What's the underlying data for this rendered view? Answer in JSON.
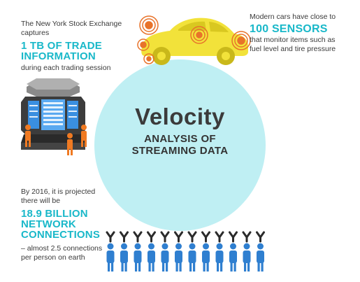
{
  "center": {
    "title": "Velocity",
    "subtitle_line1": "ANALYSIS OF",
    "subtitle_line2": "STREAMING DATA"
  },
  "nyse": {
    "line1": "The New York Stock Exchange",
    "line2": "captures",
    "highlight_line1": "1 TB OF TRADE",
    "highlight_line2": "INFORMATION",
    "line3": "during each trading session"
  },
  "cars": {
    "line1": "Modern cars have close to",
    "highlight": "100 SENSORS",
    "line2": "that monitor items such as",
    "line3": "fuel level and tire pressure"
  },
  "network": {
    "line1": "By 2016, it is projected",
    "line2": "there will be",
    "highlight_line1": "18.9 BILLION",
    "highlight_line2": "NETWORK",
    "highlight_line3": "CONNECTIONS",
    "line3": "– almost 2.5 connections",
    "line4": "per person on earth"
  },
  "colors": {
    "accent": "#19b8c9",
    "circle": "#bfeff3",
    "car": "#f2e23a",
    "sensor": "#e8732a",
    "people_blue": "#2f7fd0",
    "people_orange": "#f07a22"
  }
}
